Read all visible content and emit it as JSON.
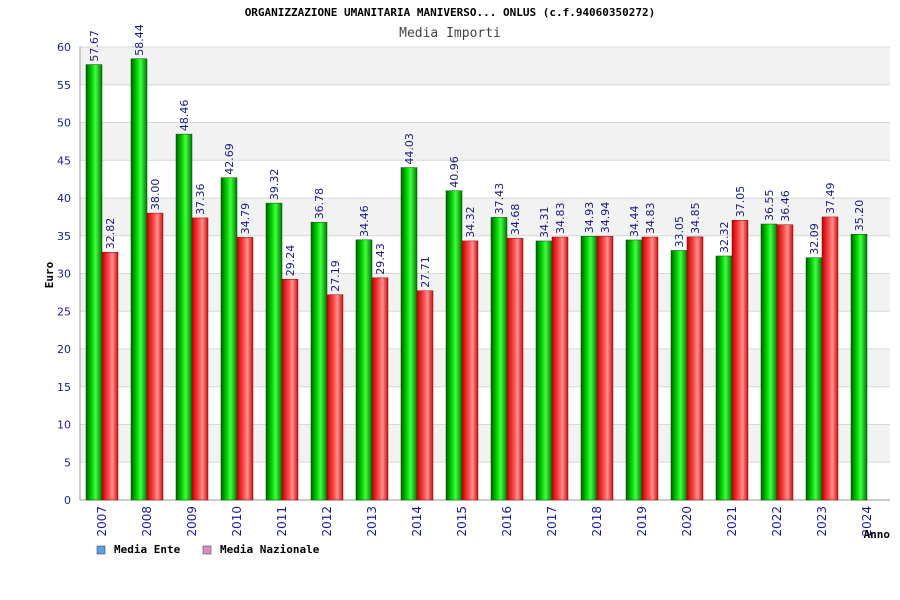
{
  "chart_data": {
    "type": "bar",
    "title": "ORGANIZZAZIONE UMANITARIA MANIVERSO... ONLUS (c.f.94060350272)",
    "subtitle": "Media Importi",
    "ylabel": "Euro",
    "xlabel": "Anno",
    "ylim": [
      0,
      60
    ],
    "yticks": [
      0,
      5,
      10,
      15,
      20,
      25,
      30,
      35,
      40,
      45,
      50,
      55,
      60
    ],
    "grid": true,
    "legend_position": "bottom-left",
    "categories": [
      "2007",
      "2008",
      "2009",
      "2010",
      "2011",
      "2012",
      "2013",
      "2014",
      "2015",
      "2016",
      "2017",
      "2018",
      "2019",
      "2020",
      "2021",
      "2022",
      "2023",
      "2024"
    ],
    "series": [
      {
        "name": "Media Ente",
        "color": "#00c000",
        "values": [
          57.67,
          58.44,
          48.46,
          42.69,
          39.32,
          36.78,
          34.46,
          44.03,
          40.96,
          37.43,
          34.31,
          34.93,
          34.44,
          33.05,
          32.32,
          36.55,
          32.09,
          35.2
        ],
        "labels": [
          "57.67",
          "58.44",
          "48.46",
          "42.69",
          "39.32",
          "36.78",
          "34.46",
          "44.03",
          "40.96",
          "37.43",
          "34.31",
          "34.93",
          "34.44",
          "33.05",
          "32.32",
          "36.55",
          "32.09",
          "35.20"
        ]
      },
      {
        "name": "Media Nazionale",
        "color": "#e02020",
        "values": [
          32.82,
          38.0,
          37.36,
          34.79,
          29.24,
          27.19,
          29.43,
          27.71,
          34.32,
          34.68,
          34.83,
          34.94,
          34.83,
          34.85,
          37.05,
          36.46,
          37.49,
          null
        ],
        "labels": [
          "32.82",
          "38.00",
          "37.36",
          "34.79",
          "29.24",
          "27.19",
          "29.43",
          "27.71",
          "34.32",
          "34.68",
          "34.83",
          "34.94",
          "34.83",
          "34.85",
          "37.05",
          "36.46",
          "37.49",
          null
        ]
      }
    ],
    "legend": [
      {
        "label": "Media Ente",
        "swatch_color": "#5aa0e8"
      },
      {
        "label": "Media Nazionale",
        "swatch_color": "#d890c8"
      }
    ]
  }
}
